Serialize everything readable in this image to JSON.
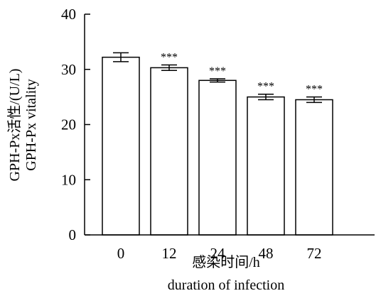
{
  "chart_data": {
    "type": "bar",
    "categories": [
      "0",
      "12",
      "24",
      "48",
      "72"
    ],
    "values": [
      32.2,
      30.3,
      28.0,
      25.0,
      24.5
    ],
    "errors": [
      0.8,
      0.5,
      0.3,
      0.5,
      0.5
    ],
    "significance": [
      "",
      "***",
      "***",
      "***",
      "***"
    ],
    "xlabel_lines": [
      "感染时间/h",
      "duration of infection"
    ],
    "ylabel_lines": [
      "GPH-Px活性/(U/L)",
      "GPH-Px vitality"
    ],
    "ylim": [
      0,
      40
    ],
    "yticks": [
      0,
      10,
      20,
      30,
      40
    ],
    "grid": false,
    "bar_fill": "#ffffff",
    "bar_stroke": "#000000"
  }
}
